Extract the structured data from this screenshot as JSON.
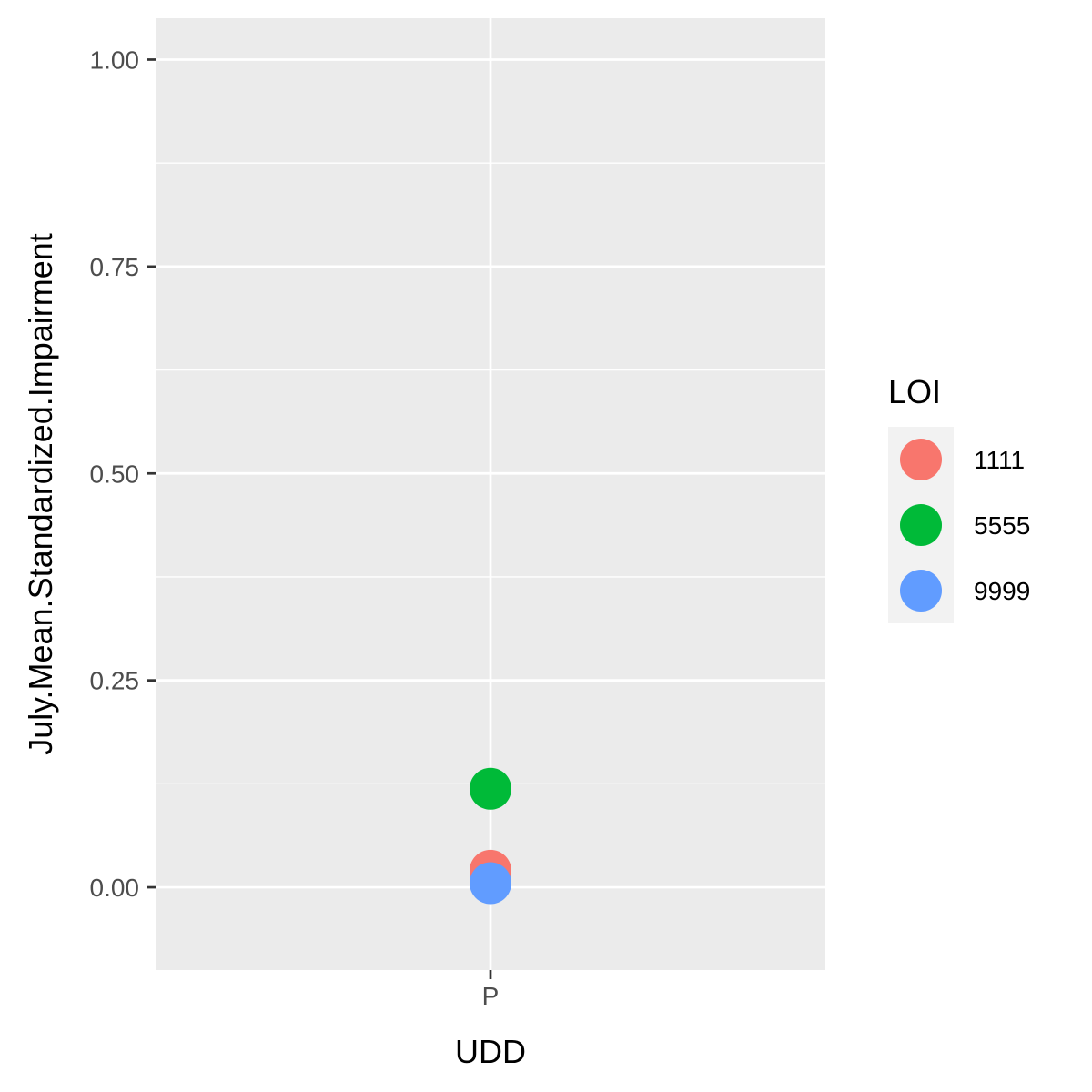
{
  "chart_data": {
    "type": "scatter",
    "categories": [
      "P"
    ],
    "xlabel": "UDD",
    "ylabel": "July.Mean.Standardized.Impairment",
    "ylim": [
      -0.1,
      1.05
    ],
    "yticks": [
      "0.00",
      "0.25",
      "0.50",
      "0.75",
      "1.00"
    ],
    "grid": true,
    "legend": {
      "title": "LOI",
      "placement": "right"
    },
    "series": [
      {
        "name": "1111",
        "color": "#F8766D",
        "points": [
          {
            "x": "P",
            "y": 0.02
          }
        ]
      },
      {
        "name": "5555",
        "color": "#00BA38",
        "points": [
          {
            "x": "P",
            "y": 0.119
          }
        ]
      },
      {
        "name": "9999",
        "color": "#619CFF",
        "points": [
          {
            "x": "P",
            "y": 0.005
          }
        ]
      }
    ]
  },
  "colors": {
    "panel_background": "#EBEBEB",
    "gridline": "#FFFFFF",
    "legend_key_background": "#F2F2F2"
  }
}
